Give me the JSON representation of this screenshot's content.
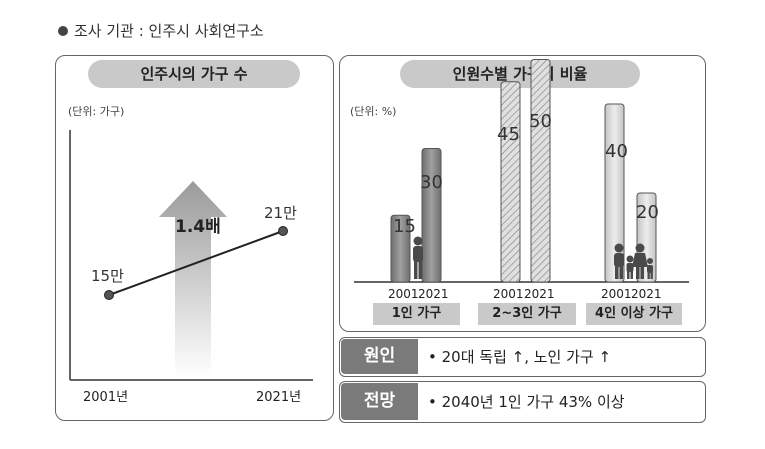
{
  "header": {
    "text": "조사 기관 : 인주시 사회연구소"
  },
  "left_panel": {
    "title": "인주시의 가구 수",
    "unit": "(단위: 가구)",
    "x_labels": [
      "2001년",
      "2021년"
    ],
    "point_labels": [
      "15만",
      "21만"
    ],
    "growth_label": "1.4배"
  },
  "right_panel": {
    "title": "인원수별 가구의 비율",
    "unit": "(단위: %)",
    "year_labels": [
      "2001",
      "2021"
    ],
    "group_labels": [
      "1인 가구",
      "2~3인 가구",
      "4인 이상 가구"
    ]
  },
  "info": {
    "cause_head": "원인",
    "cause_text": "• 20대 독립 ↑, 노인 가구 ↑",
    "outlook_head": "전망",
    "outlook_text": "• 2040년 1인 가구 43% 이상"
  },
  "chart_data": [
    {
      "type": "line",
      "title": "인주시의 가구 수",
      "unit": "(단위: 가구)",
      "categories": [
        "2001년",
        "2021년"
      ],
      "values": [
        150000,
        210000
      ],
      "data_labels": [
        "15만",
        "21만"
      ],
      "annotation": "1.4배"
    },
    {
      "type": "bar",
      "title": "인원수별 가구의 비율",
      "unit": "(단위: %)",
      "categories": [
        "1인 가구",
        "2~3인 가구",
        "4인 이상 가구"
      ],
      "series": [
        {
          "name": "2001",
          "values": [
            15,
            45,
            40
          ]
        },
        {
          "name": "2021",
          "values": [
            30,
            50,
            20
          ]
        }
      ],
      "ylim": [
        0,
        50
      ]
    }
  ],
  "colors": {
    "bar_1person": "#8a8a8a",
    "bar_23person": "#dcdcdc",
    "bar_4person": "#d6d6d6",
    "arrow": "#b5b5b5"
  }
}
